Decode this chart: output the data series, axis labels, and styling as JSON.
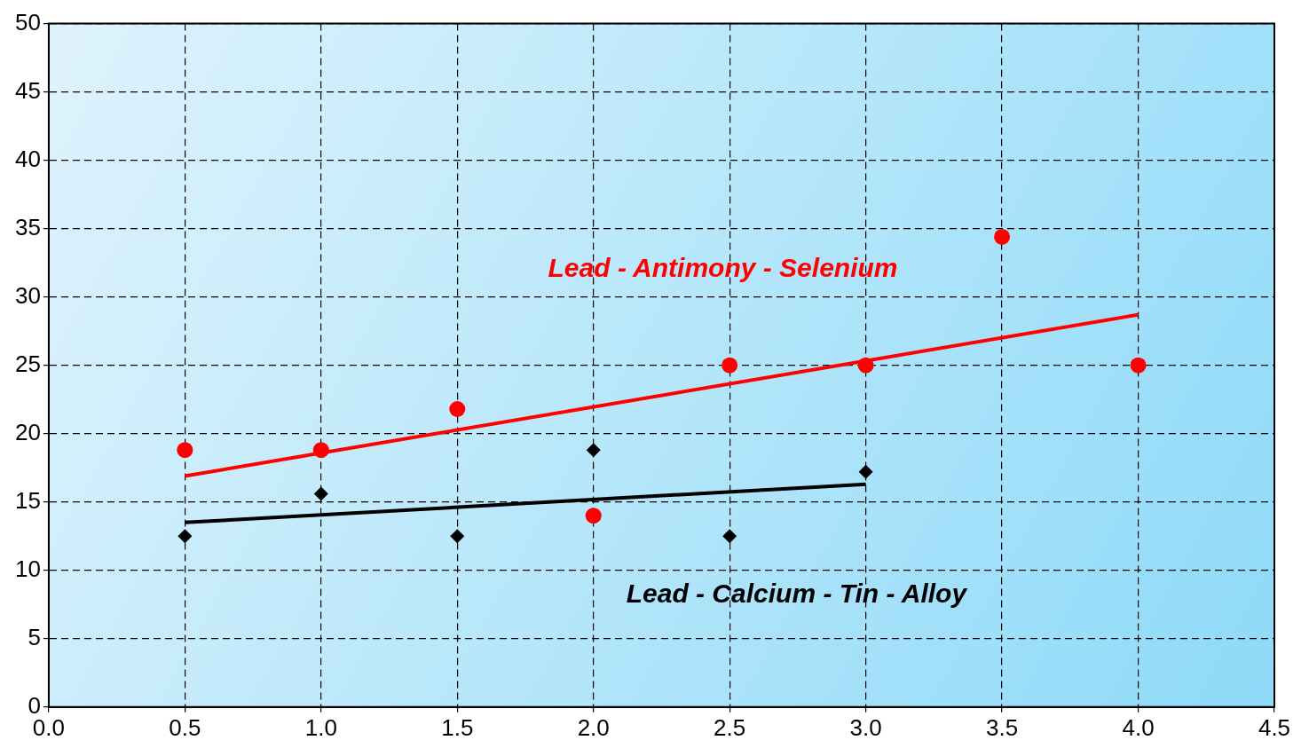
{
  "chart_data": {
    "type": "scatter",
    "xlim": [
      0,
      4.5
    ],
    "ylim": [
      0,
      50
    ],
    "xticks": [
      {
        "value": 0,
        "label": "0.0"
      },
      {
        "value": 0.5,
        "label": "0.5"
      },
      {
        "value": 1,
        "label": "1.0"
      },
      {
        "value": 1.5,
        "label": "1.5"
      },
      {
        "value": 2,
        "label": "2.0"
      },
      {
        "value": 2.5,
        "label": "2.5"
      },
      {
        "value": 3,
        "label": "3.0"
      },
      {
        "value": 3.5,
        "label": "3.5"
      },
      {
        "value": 4,
        "label": "4.0"
      },
      {
        "value": 4.5,
        "label": "4.5"
      }
    ],
    "yticks": [
      0,
      5,
      10,
      15,
      20,
      25,
      30,
      35,
      40,
      45,
      50
    ],
    "grid": true,
    "legend": false,
    "series": [
      {
        "name": "Lead - Antimony - Selenium",
        "marker": "circle",
        "color": "#ff0000",
        "x": [
          0.5,
          1,
          1.5,
          2,
          2.5,
          3,
          3.5,
          4
        ],
        "values": [
          18.8,
          18.8,
          21.8,
          14.0,
          25.0,
          25.0,
          34.4,
          25.0
        ]
      },
      {
        "name": "Lead - Calcium - Tin - Alloy",
        "marker": "diamond",
        "color": "#000000",
        "x": [
          0.5,
          1,
          1.5,
          2,
          2.5,
          3
        ],
        "values": [
          12.5,
          15.6,
          12.5,
          18.8,
          12.5,
          17.2
        ]
      },
      {
        "type": "line",
        "marker": "none",
        "line_style": "solid",
        "color": "#ff0000",
        "x": [
          0.5,
          4
        ],
        "values": [
          16.9,
          28.7
        ]
      },
      {
        "type": "line",
        "marker": "none",
        "line_style": "solid",
        "color": "#000000",
        "x": [
          0.5,
          3
        ],
        "values": [
          13.5,
          16.3
        ]
      }
    ]
  }
}
